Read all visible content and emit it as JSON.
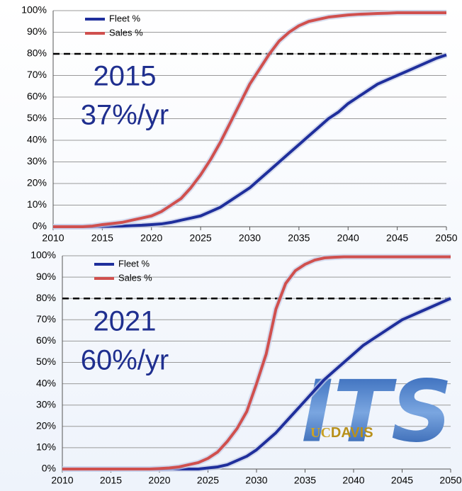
{
  "chart_data": [
    {
      "type": "line",
      "annotations": [
        "2015",
        "37%/yr"
      ],
      "x": [
        2010,
        2011,
        2012,
        2013,
        2014,
        2015,
        2016,
        2017,
        2018,
        2019,
        2020,
        2021,
        2022,
        2023,
        2024,
        2025,
        2026,
        2027,
        2028,
        2029,
        2030,
        2031,
        2032,
        2033,
        2034,
        2035,
        2036,
        2037,
        2038,
        2039,
        2040,
        2041,
        2042,
        2043,
        2044,
        2045,
        2046,
        2047,
        2048,
        2049,
        2050
      ],
      "series": [
        {
          "name": "Fleet %",
          "color": "#1f2f9c",
          "values": [
            0,
            0,
            0,
            0,
            0,
            0.1,
            0.2,
            0.3,
            0.5,
            0.7,
            1,
            1.3,
            2,
            3,
            4,
            5,
            7,
            9,
            12,
            15,
            18,
            22,
            26,
            30,
            34,
            38,
            42,
            46,
            50,
            53,
            57,
            60,
            63,
            66,
            68,
            70,
            72,
            74,
            76,
            78,
            79.5
          ]
        },
        {
          "name": "Sales %",
          "color": "#d0504e",
          "values": [
            0,
            0,
            0,
            0,
            0.3,
            1,
            1.5,
            2,
            3,
            4,
            5,
            7,
            10,
            13,
            18,
            24,
            31,
            39,
            48,
            57,
            66,
            73,
            80,
            86,
            90,
            93,
            95,
            96,
            97,
            97.5,
            98,
            98.3,
            98.5,
            98.7,
            98.8,
            99,
            99,
            99,
            99,
            99,
            99
          ]
        }
      ],
      "reference_line": 80,
      "xlim": [
        2010,
        2050
      ],
      "xticks": [
        2010,
        2015,
        2020,
        2025,
        2030,
        2035,
        2040,
        2045,
        2050
      ],
      "ylim": [
        0,
        100
      ],
      "yticks": [
        {
          "value": 0,
          "label": "0%"
        },
        {
          "value": 10,
          "label": "10%"
        },
        {
          "value": 20,
          "label": "20%"
        },
        {
          "value": 30,
          "label": "30%"
        },
        {
          "value": 40,
          "label": "40%"
        },
        {
          "value": 50,
          "label": "50%"
        },
        {
          "value": 60,
          "label": "60%"
        },
        {
          "value": 70,
          "label": "70%"
        },
        {
          "value": 80,
          "label": "80%"
        },
        {
          "value": 90,
          "label": "90%"
        },
        {
          "value": 100,
          "label": "100%"
        }
      ],
      "grid": true,
      "legend": "upper left"
    },
    {
      "type": "line",
      "annotations": [
        "2021",
        "60%/yr"
      ],
      "x": [
        2010,
        2011,
        2012,
        2013,
        2014,
        2015,
        2016,
        2017,
        2018,
        2019,
        2020,
        2021,
        2022,
        2023,
        2024,
        2025,
        2026,
        2027,
        2028,
        2029,
        2030,
        2031,
        2032,
        2033,
        2034,
        2035,
        2036,
        2037,
        2038,
        2039,
        2040,
        2041,
        2042,
        2043,
        2044,
        2045,
        2046,
        2047,
        2048,
        2049,
        2050
      ],
      "series": [
        {
          "name": "Fleet %",
          "color": "#1f2f9c",
          "values": [
            0,
            0,
            0,
            0,
            0,
            0,
            0,
            0,
            0,
            0,
            0,
            0,
            0,
            0,
            0,
            0.5,
            1,
            2,
            4,
            6,
            9,
            13,
            17,
            22,
            27,
            32,
            37,
            42,
            46,
            50,
            54,
            58,
            61,
            64,
            67,
            70,
            72,
            74,
            76,
            78,
            80
          ]
        },
        {
          "name": "Sales %",
          "color": "#d0504e",
          "values": [
            0,
            0,
            0,
            0,
            0,
            0,
            0,
            0,
            0,
            0,
            0.2,
            0.5,
            1,
            2,
            3,
            5,
            8,
            13,
            19,
            27,
            40,
            54,
            75,
            87,
            93,
            96,
            98,
            99,
            99.3,
            99.5,
            99.5,
            99.5,
            99.5,
            99.5,
            99.5,
            99.5,
            99.5,
            99.5,
            99.5,
            99.5,
            99.5
          ]
        }
      ],
      "reference_line": 80,
      "xlim": [
        2010,
        2050
      ],
      "xticks": [
        2010,
        2015,
        2020,
        2025,
        2030,
        2035,
        2040,
        2045,
        2050
      ],
      "ylim": [
        0,
        100
      ],
      "yticks": [
        {
          "value": 0,
          "label": "0%"
        },
        {
          "value": 10,
          "label": "10%"
        },
        {
          "value": 20,
          "label": "20%"
        },
        {
          "value": 30,
          "label": "30%"
        },
        {
          "value": 40,
          "label": "40%"
        },
        {
          "value": 50,
          "label": "50%"
        },
        {
          "value": 60,
          "label": "60%"
        },
        {
          "value": 70,
          "label": "70%"
        },
        {
          "value": 80,
          "label": "80%"
        },
        {
          "value": 90,
          "label": "90%"
        },
        {
          "value": 100,
          "label": "100%"
        }
      ],
      "grid": true,
      "legend": "upper left",
      "logo": {
        "main": "ITS",
        "left": "UC",
        "right": "DAVIS"
      }
    }
  ]
}
